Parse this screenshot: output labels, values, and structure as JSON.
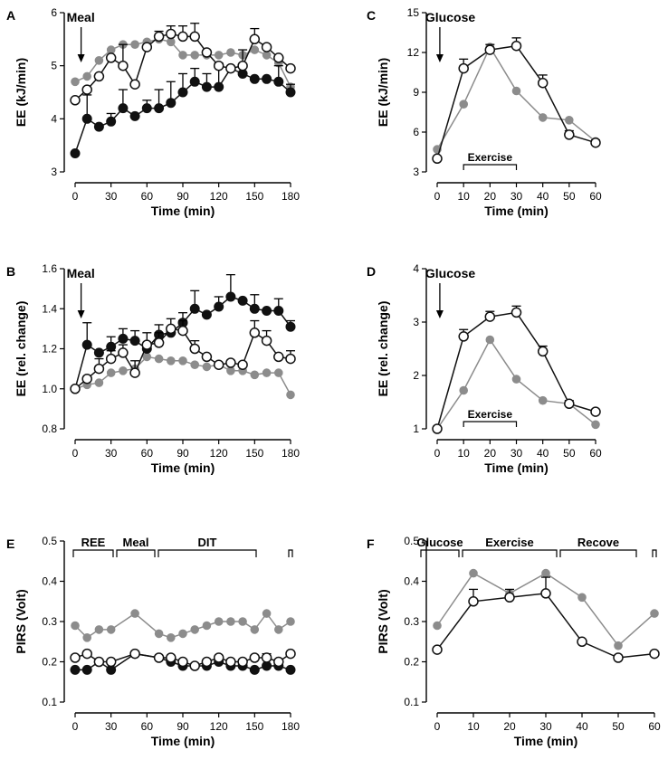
{
  "chart_data": [
    {
      "panel": "A",
      "type": "line",
      "xlabel": "Time (min)",
      "ylabel": "EE (kJ/min)",
      "xlim": [
        0,
        180
      ],
      "ylim": [
        3,
        6
      ],
      "xticks": [
        0,
        30,
        60,
        90,
        120,
        150,
        180
      ],
      "yticks": [
        3,
        4,
        5,
        6
      ],
      "annotations": [
        {
          "label": "Meal",
          "x": 5
        }
      ],
      "bracket": null,
      "series": [
        {
          "style": "black",
          "x": [
            0,
            10,
            20,
            30,
            40,
            50,
            60,
            70,
            80,
            90,
            100,
            110,
            120,
            130,
            140,
            150,
            160,
            170,
            180
          ],
          "y": [
            3.35,
            4.0,
            3.85,
            3.95,
            4.2,
            4.05,
            4.2,
            4.2,
            4.3,
            4.5,
            4.7,
            4.6,
            4.6,
            4.95,
            4.85,
            4.75,
            4.75,
            4.7,
            4.5
          ],
          "err": [
            0,
            0.45,
            0,
            0.15,
            0.35,
            0,
            0.15,
            0.35,
            0.4,
            0.35,
            0.25,
            0.25,
            0.45,
            0,
            0.45,
            0,
            0,
            0.3,
            0.15
          ]
        },
        {
          "style": "gray",
          "x": [
            0,
            10,
            20,
            30,
            40,
            50,
            60,
            70,
            80,
            90,
            100,
            110,
            120,
            130,
            140,
            150,
            160,
            170,
            180
          ],
          "y": [
            4.7,
            4.8,
            5.1,
            5.3,
            5.4,
            5.4,
            5.45,
            5.5,
            5.45,
            5.2,
            5.2,
            5.2,
            5.2,
            5.25,
            5.2,
            5.3,
            5.2,
            5.05,
            4.6
          ],
          "err": []
        },
        {
          "style": "white",
          "x": [
            0,
            10,
            20,
            30,
            40,
            50,
            60,
            70,
            80,
            90,
            100,
            110,
            120,
            130,
            140,
            150,
            160,
            170,
            180
          ],
          "y": [
            4.35,
            4.55,
            4.8,
            5.15,
            5.0,
            4.65,
            5.35,
            5.55,
            5.6,
            5.55,
            5.55,
            5.25,
            5.0,
            4.95,
            5.0,
            5.5,
            5.35,
            5.15,
            4.95
          ],
          "err": [
            0,
            0,
            0,
            0,
            0.4,
            0,
            0,
            0.1,
            0.15,
            0.2,
            0.25,
            0,
            0,
            0,
            0,
            0.2,
            0,
            0,
            0
          ]
        }
      ]
    },
    {
      "panel": "B",
      "type": "line",
      "xlabel": "Time (min)",
      "ylabel": "EE (rel. change)",
      "xlim": [
        0,
        180
      ],
      "ylim": [
        0.8,
        1.6
      ],
      "xticks": [
        0,
        30,
        60,
        90,
        120,
        150,
        180
      ],
      "yticks": [
        "0.8",
        "1.0",
        "1.2",
        "1.4",
        "1.6"
      ],
      "annotations": [
        {
          "label": "Meal",
          "x": 5
        }
      ],
      "bracket": null,
      "series": [
        {
          "style": "black",
          "x": [
            0,
            10,
            20,
            30,
            40,
            50,
            60,
            70,
            80,
            90,
            100,
            110,
            120,
            130,
            140,
            150,
            160,
            170,
            180
          ],
          "y": [
            1.0,
            1.22,
            1.18,
            1.21,
            1.25,
            1.24,
            1.2,
            1.27,
            1.28,
            1.33,
            1.4,
            1.37,
            1.41,
            1.46,
            1.44,
            1.4,
            1.39,
            1.39,
            1.31
          ],
          "err": [
            0,
            0.11,
            0,
            0.05,
            0.05,
            0.05,
            0,
            0.05,
            0,
            0.05,
            0.09,
            0,
            0.05,
            0.11,
            0,
            0.07,
            0,
            0.06,
            0.03
          ]
        },
        {
          "style": "gray",
          "x": [
            0,
            10,
            20,
            30,
            40,
            50,
            60,
            70,
            80,
            90,
            100,
            110,
            120,
            130,
            140,
            150,
            160,
            170,
            180
          ],
          "y": [
            1.0,
            1.02,
            1.03,
            1.08,
            1.09,
            1.1,
            1.16,
            1.15,
            1.14,
            1.14,
            1.12,
            1.11,
            1.12,
            1.09,
            1.09,
            1.07,
            1.08,
            1.08,
            0.97
          ],
          "err": []
        },
        {
          "style": "white",
          "x": [
            0,
            10,
            20,
            30,
            40,
            50,
            60,
            70,
            80,
            90,
            100,
            110,
            120,
            130,
            140,
            150,
            160,
            170,
            180
          ],
          "y": [
            1.0,
            1.05,
            1.1,
            1.15,
            1.18,
            1.08,
            1.22,
            1.23,
            1.3,
            1.29,
            1.2,
            1.16,
            1.12,
            1.13,
            1.12,
            1.28,
            1.24,
            1.16,
            1.15
          ],
          "err": [
            0,
            0,
            0.05,
            0.04,
            0.04,
            0.06,
            0.06,
            0.05,
            0.05,
            0.05,
            0.04,
            0,
            0,
            0,
            0,
            0.06,
            0.05,
            0,
            0.04
          ]
        }
      ]
    },
    {
      "panel": "C",
      "type": "line",
      "xlabel": "Time (min)",
      "ylabel": "EE (kJ/min)",
      "xlim": [
        0,
        60
      ],
      "ylim": [
        3,
        15
      ],
      "xticks": [
        0,
        10,
        20,
        30,
        40,
        50,
        60
      ],
      "yticks": [
        3,
        6,
        9,
        12,
        15
      ],
      "annotations": [
        {
          "label": "Glucose",
          "x": 1
        }
      ],
      "bracket": {
        "label": "Exercise",
        "from": 10,
        "to": 30,
        "y": 2
      },
      "series": [
        {
          "style": "gray",
          "x": [
            0,
            10,
            20,
            30,
            40,
            50,
            60
          ],
          "y": [
            4.7,
            8.1,
            12.4,
            9.1,
            7.1,
            6.9,
            5.3
          ],
          "err": []
        },
        {
          "style": "white",
          "x": [
            0,
            10,
            20,
            30,
            40,
            50,
            60
          ],
          "y": [
            4.0,
            10.8,
            12.2,
            12.5,
            9.7,
            5.8,
            5.2
          ],
          "err": [
            0,
            0.7,
            0.4,
            0.6,
            0.6,
            0.3,
            0.2
          ]
        }
      ]
    },
    {
      "panel": "D",
      "type": "line",
      "xlabel": "Time (min)",
      "ylabel": "EE (rel. change)",
      "xlim": [
        0,
        60
      ],
      "ylim": [
        1,
        4
      ],
      "xticks": [
        0,
        10,
        20,
        30,
        40,
        50,
        60
      ],
      "yticks": [
        1,
        2,
        3,
        4
      ],
      "annotations": [
        {
          "label": "Glucose",
          "x": 1
        }
      ],
      "bracket": {
        "label": "Exercise",
        "from": 10,
        "to": 30,
        "y": 0.75
      },
      "series": [
        {
          "style": "gray",
          "x": [
            0,
            10,
            20,
            30,
            40,
            50,
            60
          ],
          "y": [
            1.0,
            1.72,
            2.67,
            1.93,
            1.53,
            1.47,
            1.08
          ],
          "err": []
        },
        {
          "style": "white",
          "x": [
            0,
            10,
            20,
            30,
            40,
            50,
            60
          ],
          "y": [
            1.0,
            2.73,
            3.1,
            3.18,
            2.45,
            1.47,
            1.32
          ],
          "err": [
            0,
            0.13,
            0.1,
            0.12,
            0.1,
            0.06,
            0
          ]
        }
      ]
    },
    {
      "panel": "E",
      "type": "line",
      "xlabel": "Time (min)",
      "ylabel": "PIRS (Volt)",
      "xlim": [
        0,
        180
      ],
      "ylim": [
        0.1,
        0.5
      ],
      "xticks": [
        0,
        30,
        60,
        90,
        120,
        150,
        180
      ],
      "yticks": [
        "0.1",
        "0.2",
        "0.3",
        "0.4",
        "0.5"
      ],
      "phases": [
        "REE",
        "Meal",
        "DIT"
      ],
      "series": [
        {
          "style": "gray",
          "x": [
            0,
            10,
            20,
            30,
            50,
            70,
            80,
            90,
            100,
            110,
            120,
            130,
            140,
            150,
            160,
            170,
            180
          ],
          "y": [
            0.29,
            0.26,
            0.28,
            0.28,
            0.32,
            0.27,
            0.26,
            0.27,
            0.28,
            0.29,
            0.3,
            0.3,
            0.3,
            0.28,
            0.32,
            0.28,
            0.3
          ],
          "err": []
        },
        {
          "style": "black",
          "x": [
            0,
            10,
            20,
            30,
            50,
            70,
            80,
            90,
            100,
            110,
            120,
            130,
            140,
            150,
            160,
            170,
            180
          ],
          "y": [
            0.18,
            0.18,
            0.2,
            0.18,
            0.22,
            0.21,
            0.2,
            0.19,
            0.19,
            0.19,
            0.2,
            0.19,
            0.19,
            0.18,
            0.19,
            0.19,
            0.18
          ],
          "err": []
        },
        {
          "style": "white",
          "x": [
            0,
            10,
            20,
            30,
            50,
            70,
            80,
            90,
            100,
            110,
            120,
            130,
            140,
            150,
            160,
            170,
            180
          ],
          "y": [
            0.21,
            0.22,
            0.2,
            0.2,
            0.22,
            0.21,
            0.21,
            0.2,
            0.19,
            0.2,
            0.21,
            0.2,
            0.2,
            0.21,
            0.21,
            0.2,
            0.22
          ],
          "err": [
            0,
            0,
            0,
            0,
            0,
            0,
            0,
            0,
            0,
            0,
            0,
            0,
            0,
            0,
            0.01,
            0,
            0
          ]
        }
      ]
    },
    {
      "panel": "F",
      "type": "line",
      "xlabel": "Time (min)",
      "ylabel": "PIRS (Volt)",
      "xlim": [
        0,
        60
      ],
      "ylim": [
        0.1,
        0.5
      ],
      "xticks": [
        0,
        10,
        20,
        30,
        40,
        50,
        60
      ],
      "yticks": [
        "0.1",
        "0.2",
        "0.3",
        "0.4",
        "0.5"
      ],
      "phases": [
        "Glucose",
        "Exercise",
        "Recove"
      ],
      "series": [
        {
          "style": "gray",
          "x": [
            0,
            10,
            20,
            30,
            40,
            50,
            60
          ],
          "y": [
            0.29,
            0.42,
            0.37,
            0.42,
            0.36,
            0.24,
            0.32
          ],
          "err": []
        },
        {
          "style": "white",
          "x": [
            0,
            10,
            20,
            30,
            40,
            50,
            60
          ],
          "y": [
            0.23,
            0.35,
            0.36,
            0.37,
            0.25,
            0.21,
            0.22
          ],
          "err": [
            0,
            0.03,
            0.02,
            0.04,
            0,
            0,
            0
          ]
        }
      ]
    }
  ]
}
